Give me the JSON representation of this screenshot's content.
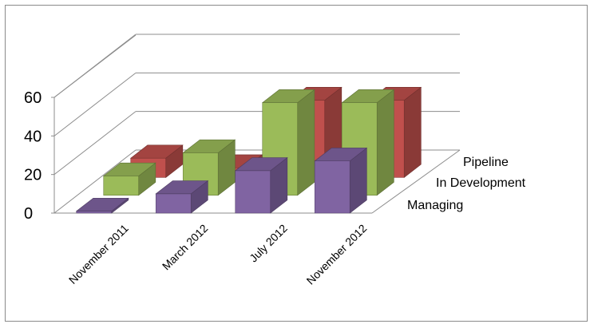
{
  "chart_data": {
    "type": "bar",
    "categories": [
      "November 2011",
      "March 2012",
      "July 2012",
      "November 2012"
    ],
    "series": [
      {
        "name": "Managing",
        "values": [
          1,
          10,
          22,
          27
        ],
        "color": "#8064a2"
      },
      {
        "name": "In Development",
        "values": [
          10,
          22,
          48,
          48
        ],
        "color": "#9bbb59"
      },
      {
        "name": "Pipeline",
        "values": [
          10,
          5,
          40,
          40
        ],
        "color": "#c0504d"
      }
    ],
    "yticks": [
      "0",
      "20",
      "40",
      "60"
    ],
    "ylim": [
      0,
      60
    ],
    "grid": true,
    "legend": "depth-axis-right"
  }
}
